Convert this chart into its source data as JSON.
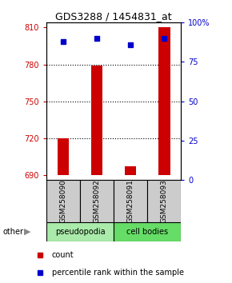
{
  "title": "GDS3288 / 1454831_at",
  "samples": [
    "GSM258090",
    "GSM258092",
    "GSM258091",
    "GSM258093"
  ],
  "counts": [
    720,
    779,
    697,
    810
  ],
  "percentile_ranks": [
    88,
    90,
    86,
    90
  ],
  "ylim_left": [
    686,
    814
  ],
  "yticks_left": [
    690,
    720,
    750,
    780,
    810
  ],
  "ylim_right": [
    0,
    100
  ],
  "yticks_right": [
    0,
    25,
    50,
    75,
    100
  ],
  "bar_color": "#cc0000",
  "dot_color": "#0000cc",
  "bar_bottom": 690,
  "pseudopodia_color": "#aaeaaa",
  "cell_bodies_color": "#66dd66",
  "group_label_bg": "#cccccc",
  "ylabel_left_color": "#cc0000",
  "ylabel_right_color": "#0000cc",
  "legend_count_color": "#cc0000",
  "legend_percentile_color": "#0000cc",
  "gridline_ticks": [
    720,
    750,
    780
  ]
}
